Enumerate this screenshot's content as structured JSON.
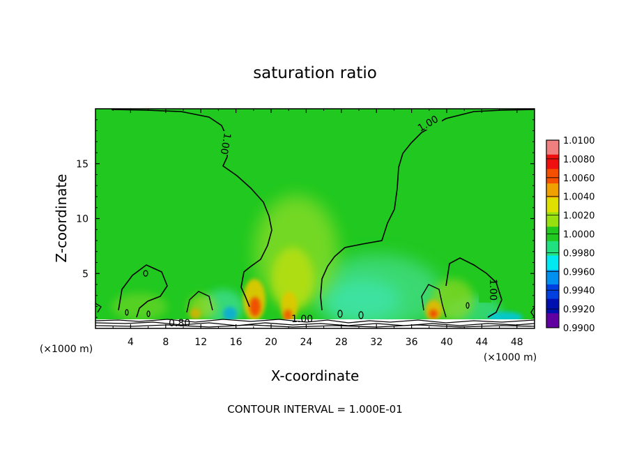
{
  "chart_data": {
    "type": "heatmap",
    "title": "saturation ratio",
    "xlabel": "X-coordinate",
    "ylabel": "Z-coordinate",
    "x_unit_left": "(×1000 m)",
    "x_unit_right": "(×1000 m)",
    "footer": "CONTOUR INTERVAL = 1.000E-01",
    "xlim": [
      0,
      50
    ],
    "ylim": [
      0,
      20
    ],
    "x_ticks": [
      "4",
      "8",
      "12",
      "16",
      "20",
      "24",
      "28",
      "32",
      "36",
      "40",
      "44",
      "48"
    ],
    "y_ticks": [
      "5",
      "10",
      "15"
    ],
    "contour_labels": [
      "1.00",
      "1.00",
      "1.00",
      "1.00",
      "0.80"
    ],
    "colorbar": {
      "labels": [
        "1.0100",
        "1.0080",
        "1.0060",
        "1.0040",
        "1.0020",
        "1.0000",
        "0.9980",
        "0.9960",
        "0.9940",
        "0.9920",
        "0.9900"
      ],
      "colors": [
        "#f08080",
        "#ee1010",
        "#f45000",
        "#f0a000",
        "#e0e000",
        "#98e010",
        "#20c820",
        "#20e080",
        "#00e8f0",
        "#0090f0",
        "#0040e0",
        "#0010b0",
        "#6000a0"
      ]
    },
    "background_color": "#20c820"
  }
}
